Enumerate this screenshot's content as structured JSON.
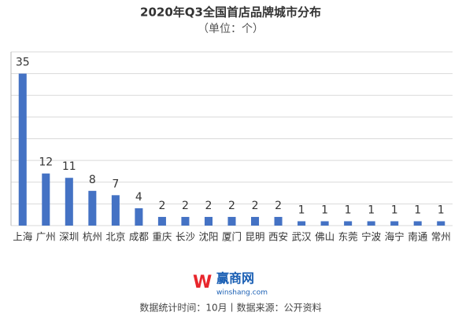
{
  "chart_data": {
    "type": "bar",
    "title": "2020年Q3全国首店品牌城市分布",
    "subtitle": "（单位：个）",
    "categories": [
      "上海",
      "广州",
      "深圳",
      "杭州",
      "北京",
      "成都",
      "重庆",
      "长沙",
      "沈阳",
      "厦门",
      "昆明",
      "西安",
      "武汉",
      "佛山",
      "东莞",
      "宁波",
      "海宁",
      "南通",
      "常州"
    ],
    "values": [
      35,
      12,
      11,
      8,
      7,
      4,
      2,
      2,
      2,
      2,
      2,
      2,
      1,
      1,
      1,
      1,
      1,
      1,
      1
    ],
    "color": "#4472c4",
    "ylim": [
      0,
      40
    ],
    "yticks": [
      0,
      5,
      10,
      15,
      20,
      25,
      30,
      35,
      40
    ],
    "grid": true,
    "logo": {
      "name": "赢商网",
      "url": "winshang.com"
    },
    "footer": "数据统计时间：10月丨数据来源：公开资料"
  }
}
